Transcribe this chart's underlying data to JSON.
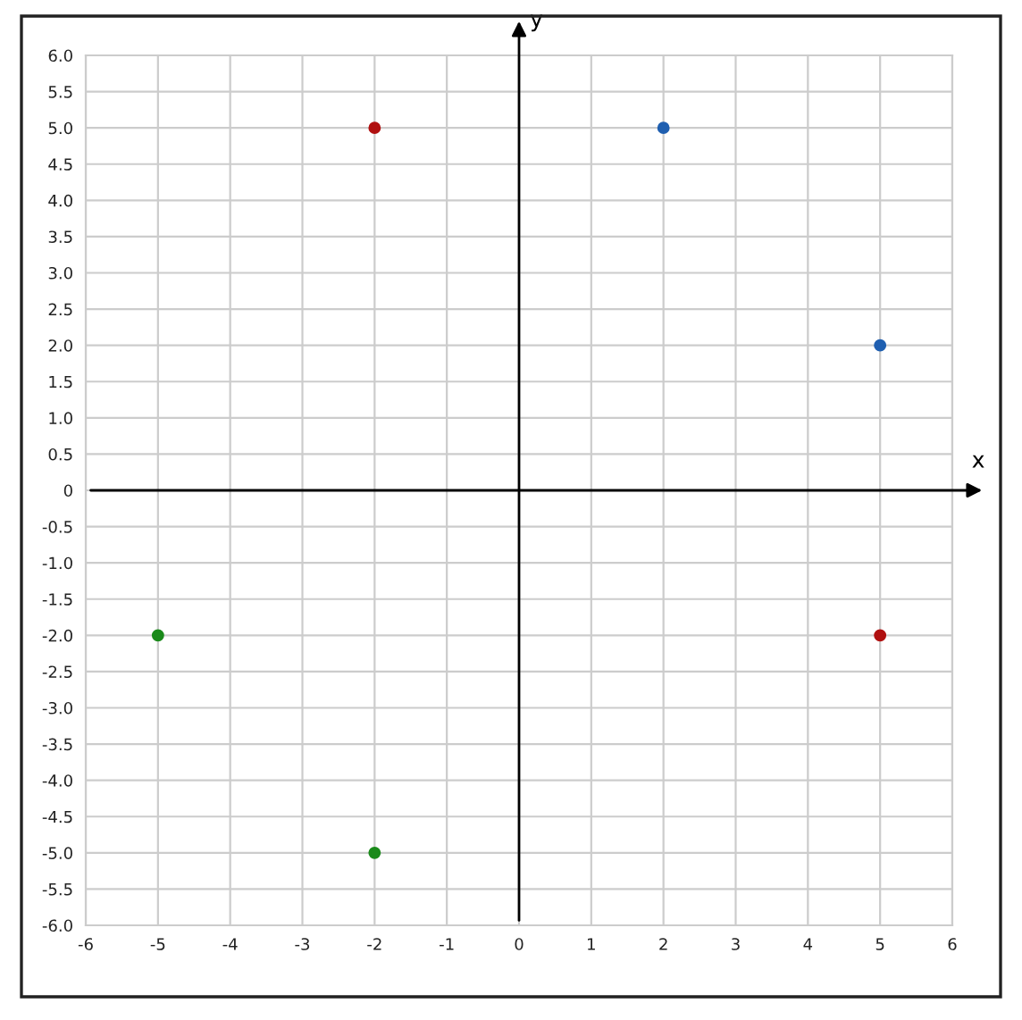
{
  "chart_data": {
    "type": "scatter",
    "xlabel": "x",
    "ylabel": "y",
    "series": [
      {
        "color": "#b01010",
        "x": [
          -2,
          5
        ],
        "values": [
          5,
          -2
        ]
      },
      {
        "color": "#1f5fb0",
        "x": [
          2,
          5
        ],
        "values": [
          5,
          2
        ]
      },
      {
        "color": "#1a8a1a",
        "x": [
          -5,
          -2
        ],
        "values": [
          -2,
          -5
        ]
      }
    ],
    "xlim": [
      -6,
      6
    ],
    "ylim": [
      -6,
      6
    ],
    "xticks": [
      -6,
      -5,
      -4,
      -3,
      -2,
      -1,
      0,
      1,
      2,
      3,
      4,
      5,
      6
    ],
    "yticks": [
      {
        "value": -6,
        "label": "-6.0"
      },
      -5.5,
      {
        "value": -5,
        "label": "-5.0"
      },
      -4.5,
      {
        "value": -4,
        "label": "-4.0"
      },
      -3.5,
      {
        "value": -3,
        "label": "-3.0"
      },
      -2.5,
      {
        "value": -2,
        "label": "-2.0"
      },
      -1.5,
      {
        "value": -1,
        "label": "-1.0"
      },
      -0.5,
      0,
      0.5,
      {
        "value": 1,
        "label": "1.0"
      },
      1.5,
      {
        "value": 2,
        "label": "2.0"
      },
      2.5,
      {
        "value": 3,
        "label": "3.0"
      },
      3.5,
      {
        "value": 4,
        "label": "4.0"
      },
      4.5,
      {
        "value": 5,
        "label": "5.0"
      },
      5.5,
      {
        "value": 6,
        "label": "6.0"
      }
    ],
    "grid": true,
    "marker": "circle"
  }
}
